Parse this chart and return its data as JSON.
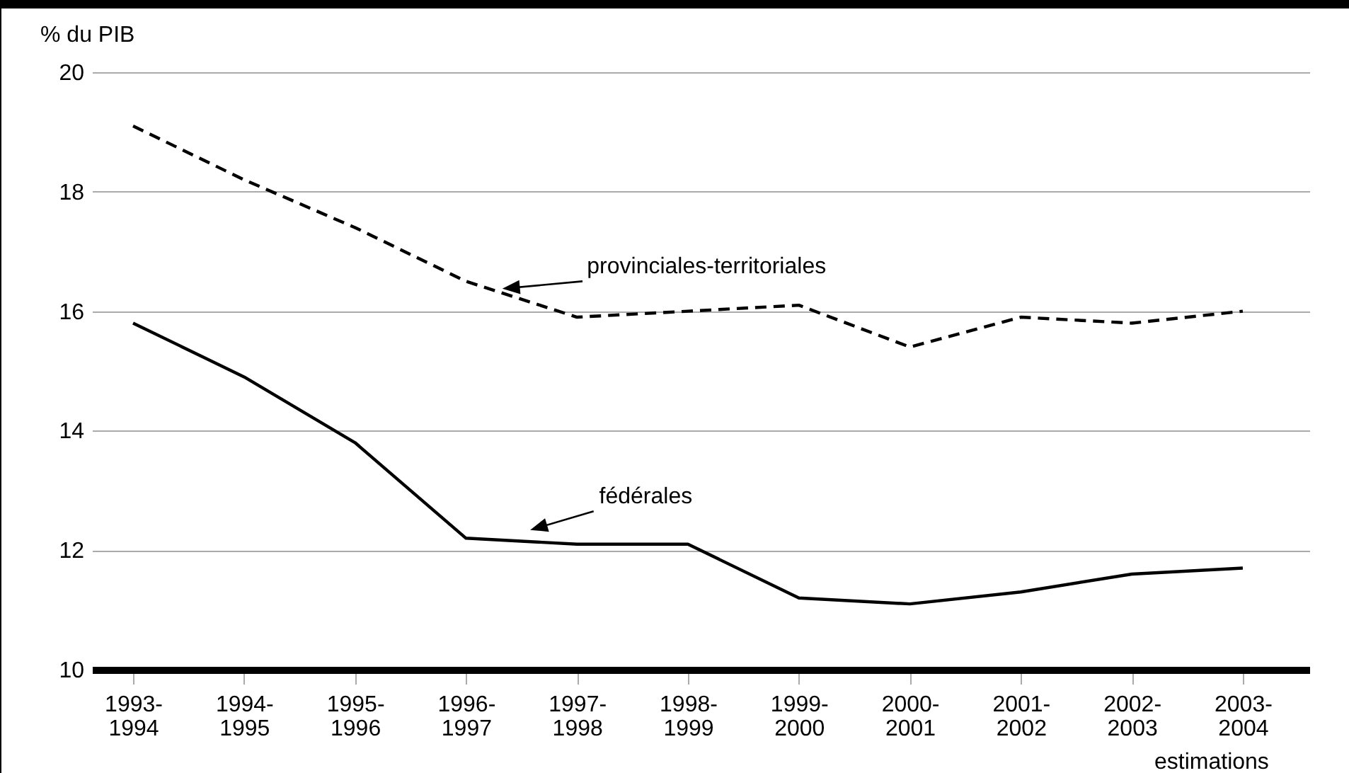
{
  "chart_data": {
    "type": "line",
    "ylabel": "% du PIB",
    "categories": [
      "1993-1994",
      "1994-1995",
      "1995-1996",
      "1996-1997",
      "1997-1998",
      "1998-1999",
      "1999-2000",
      "2000-2001",
      "2001-2002",
      "2002-2003",
      "2003-2004"
    ],
    "series": [
      {
        "name": "provinciales-territoriales",
        "color": "#000000",
        "line_style": "dashed",
        "values": [
          19.1,
          18.2,
          17.4,
          16.5,
          15.9,
          16.0,
          16.1,
          15.4,
          15.9,
          15.8,
          16.0
        ]
      },
      {
        "name": "fédérales",
        "color": "#000000",
        "line_style": "solid",
        "values": [
          15.8,
          14.9,
          13.8,
          12.2,
          12.1,
          12.1,
          11.2,
          11.1,
          11.3,
          11.6,
          11.7
        ]
      }
    ],
    "annotations": [
      "estimations"
    ],
    "ylim": [
      10,
      20
    ],
    "yticks": [
      10,
      12,
      14,
      16,
      18,
      20
    ],
    "grid": "y",
    "marker": "none"
  }
}
